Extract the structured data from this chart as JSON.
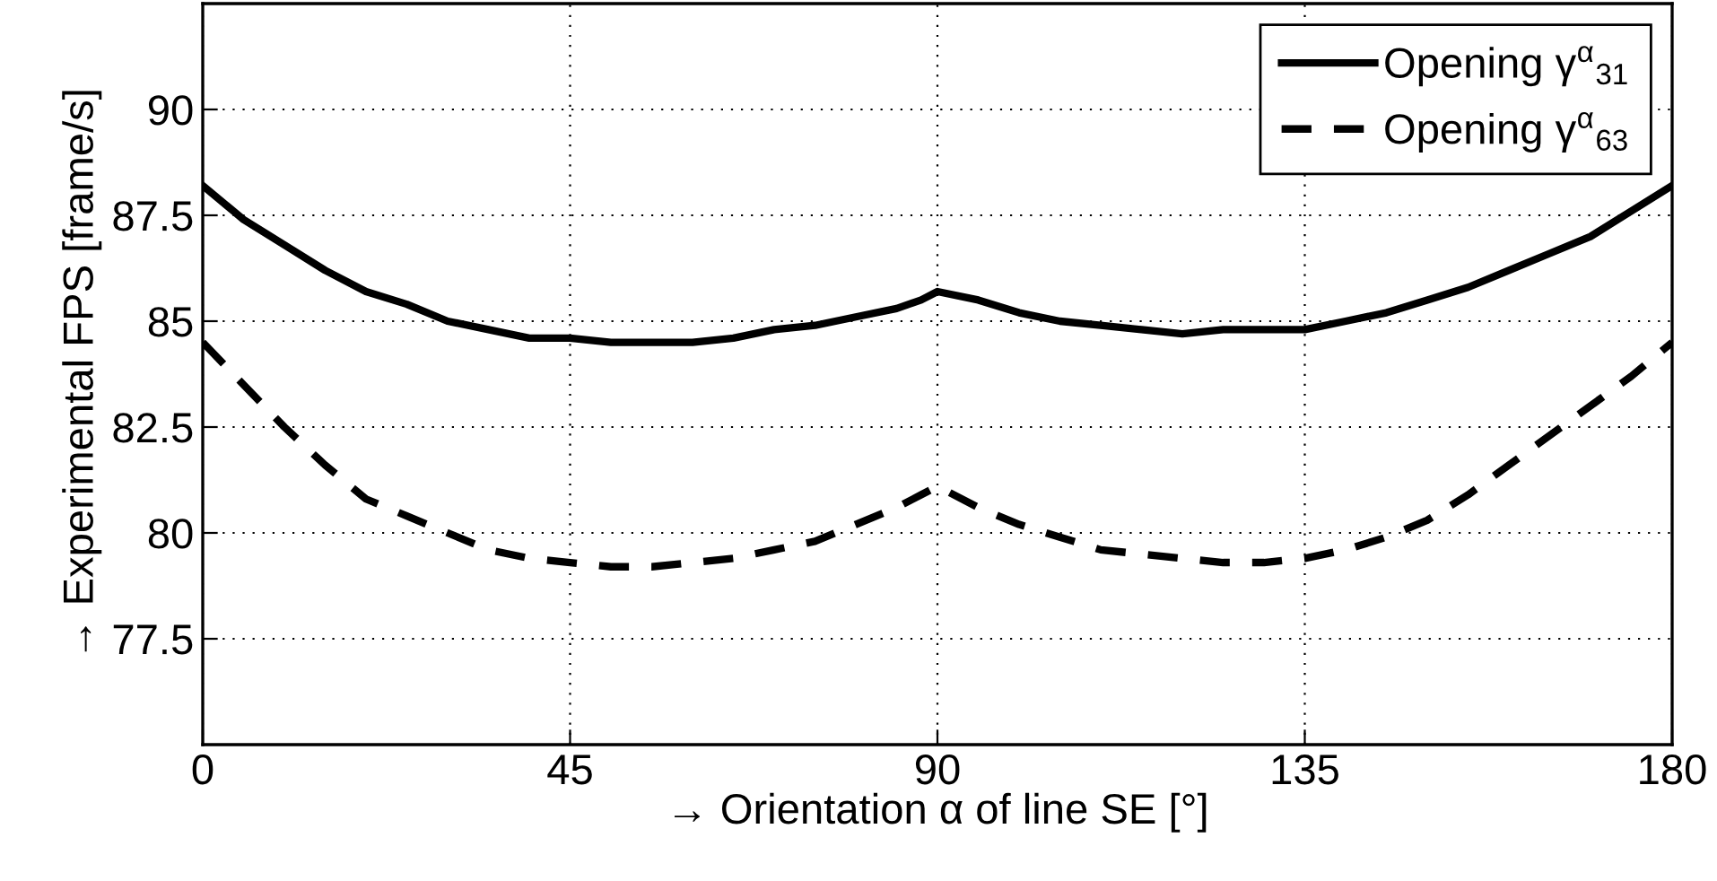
{
  "chart_data": {
    "type": "line",
    "xlabel": "→ Orientation α of line SE [°]",
    "ylabel": "→ Experimental FPS [frame/s]",
    "x": [
      0,
      5,
      10,
      15,
      20,
      25,
      30,
      35,
      40,
      45,
      50,
      55,
      60,
      65,
      70,
      75,
      80,
      85,
      88,
      90,
      95,
      100,
      105,
      110,
      115,
      120,
      125,
      130,
      135,
      140,
      145,
      150,
      155,
      160,
      165,
      170,
      175,
      180
    ],
    "series": [
      {
        "name": "Opening γ$^{α}$$_{31}$",
        "color": "#000000",
        "line_style": "solid",
        "values": [
          88.2,
          87.4,
          86.8,
          86.2,
          85.7,
          85.4,
          85.0,
          84.8,
          84.6,
          84.6,
          84.5,
          84.5,
          84.5,
          84.6,
          84.8,
          84.9,
          85.1,
          85.3,
          85.5,
          85.7,
          85.5,
          85.2,
          85.0,
          84.9,
          84.8,
          84.7,
          84.8,
          84.8,
          84.8,
          85.0,
          85.2,
          85.5,
          85.8,
          86.2,
          86.6,
          87.0,
          87.6,
          88.2
        ]
      },
      {
        "name": "Opening γ$^{α}$$_{63}$",
        "color": "#000000",
        "line_style": "dashed",
        "values": [
          84.5,
          83.5,
          82.5,
          81.6,
          80.8,
          80.4,
          80.0,
          79.6,
          79.4,
          79.3,
          79.2,
          79.2,
          79.3,
          79.4,
          79.6,
          79.8,
          80.2,
          80.6,
          80.9,
          81.1,
          80.6,
          80.2,
          79.9,
          79.6,
          79.5,
          79.4,
          79.3,
          79.3,
          79.4,
          79.6,
          79.9,
          80.3,
          80.9,
          81.6,
          82.3,
          83.0,
          83.7,
          84.5
        ]
      }
    ],
    "xlim": [
      0,
      180
    ],
    "xticks": [
      0,
      45,
      90,
      135,
      180
    ],
    "ylim": [
      75,
      92.5
    ],
    "yticks": [
      77.5,
      80,
      82.5,
      85,
      87.5,
      90
    ],
    "grid": true,
    "legend": "top right",
    "marker": "none"
  }
}
